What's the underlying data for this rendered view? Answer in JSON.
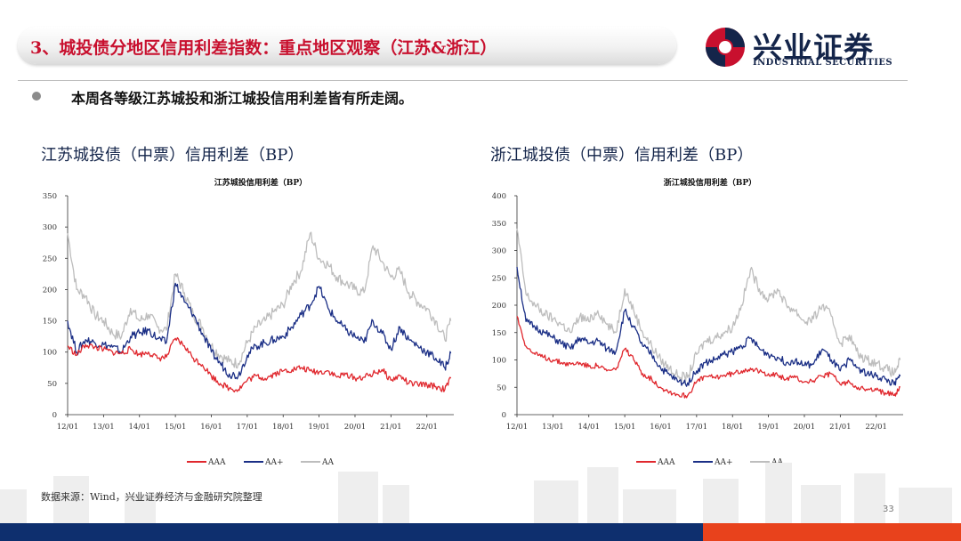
{
  "header": {
    "title": "3、城投债分地区信用利差指数：重点地区观察（江苏&浙江）",
    "logo_cn": "兴业证券",
    "logo_en": "INDUSTRIAL SECURITIES"
  },
  "bullet": "本周各等级江苏城投和浙江城投信用利差皆有所走阔。",
  "source": "数据来源：Wind，兴业证券经济与金融研究院整理",
  "page_number": "33",
  "colors": {
    "AAA": "#e0282e",
    "AA+": "#1b2f86",
    "AA": "#bdbdbd",
    "title_red": "#c8102e",
    "navy": "#14254a"
  },
  "charts": [
    {
      "heading": "江苏城投债（中票）信用利差（BP）",
      "inner_title": "江苏城投信用利差（BP）",
      "yticks": [
        "0",
        "50",
        "100",
        "150",
        "200",
        "250",
        "300",
        "350"
      ],
      "xticks": [
        "12/01",
        "13/01",
        "14/01",
        "15/01",
        "16/01",
        "17/01",
        "18/01",
        "19/01",
        "20/01",
        "21/01",
        "22/01"
      ],
      "legend": [
        "AAA",
        "AA+",
        "AA"
      ]
    },
    {
      "heading": "浙江城投债（中票）信用利差（BP）",
      "inner_title": "浙江城投信用利差（BP）",
      "yticks": [
        "0",
        "50",
        "100",
        "150",
        "200",
        "250",
        "300",
        "350",
        "400"
      ],
      "xticks": [
        "12/01",
        "13/01",
        "14/01",
        "15/01",
        "16/01",
        "17/01",
        "18/01",
        "19/01",
        "20/01",
        "21/01",
        "22/01"
      ],
      "legend": [
        "AAA",
        "AA+",
        "AA"
      ]
    }
  ],
  "chart_data": [
    {
      "type": "line",
      "title": "江苏城投信用利差（BP）",
      "ylim": [
        0,
        350
      ],
      "x": [
        "2012-01",
        "2012-04",
        "2012-07",
        "2012-10",
        "2013-01",
        "2013-04",
        "2013-07",
        "2013-10",
        "2014-01",
        "2014-04",
        "2014-07",
        "2014-10",
        "2015-01",
        "2015-04",
        "2015-07",
        "2015-10",
        "2016-01",
        "2016-04",
        "2016-07",
        "2016-10",
        "2017-01",
        "2017-04",
        "2017-07",
        "2017-10",
        "2018-01",
        "2018-04",
        "2018-07",
        "2018-10",
        "2019-01",
        "2019-04",
        "2019-07",
        "2019-10",
        "2020-01",
        "2020-04",
        "2020-07",
        "2020-10",
        "2021-01",
        "2021-04",
        "2021-07",
        "2021-10",
        "2022-01",
        "2022-04",
        "2022-07",
        "2022-09"
      ],
      "series": [
        {
          "name": "AAA",
          "values": [
            110,
            95,
            112,
            108,
            104,
            100,
            98,
            105,
            96,
            100,
            90,
            92,
            122,
            110,
            90,
            80,
            62,
            50,
            42,
            40,
            55,
            62,
            58,
            65,
            70,
            72,
            75,
            70,
            68,
            70,
            60,
            65,
            58,
            60,
            65,
            72,
            55,
            62,
            50,
            48,
            48,
            45,
            40,
            58
          ]
        },
        {
          "name": "AA+",
          "values": [
            150,
            100,
            120,
            115,
            112,
            108,
            100,
            125,
            130,
            135,
            122,
            115,
            210,
            180,
            160,
            130,
            100,
            82,
            65,
            62,
            95,
            110,
            115,
            120,
            125,
            140,
            160,
            175,
            205,
            170,
            150,
            135,
            125,
            115,
            150,
            130,
            105,
            140,
            120,
            110,
            100,
            90,
            75,
            98
          ]
        },
        {
          "name": "AA",
          "values": [
            290,
            200,
            190,
            160,
            150,
            130,
            125,
            170,
            150,
            160,
            140,
            135,
            225,
            195,
            160,
            140,
            110,
            95,
            85,
            82,
            115,
            140,
            150,
            165,
            175,
            210,
            230,
            290,
            250,
            240,
            220,
            210,
            200,
            195,
            270,
            245,
            220,
            230,
            195,
            180,
            170,
            150,
            120,
            150
          ]
        }
      ]
    },
    {
      "type": "line",
      "title": "浙江城投信用利差（BP）",
      "ylim": [
        0,
        400
      ],
      "x": [
        "2012-01",
        "2012-04",
        "2012-07",
        "2012-10",
        "2013-01",
        "2013-04",
        "2013-07",
        "2013-10",
        "2014-01",
        "2014-04",
        "2014-07",
        "2014-10",
        "2015-01",
        "2015-04",
        "2015-07",
        "2015-10",
        "2016-01",
        "2016-04",
        "2016-07",
        "2016-10",
        "2017-01",
        "2017-04",
        "2017-07",
        "2017-10",
        "2018-01",
        "2018-04",
        "2018-07",
        "2018-10",
        "2019-01",
        "2019-04",
        "2019-07",
        "2019-10",
        "2020-01",
        "2020-04",
        "2020-07",
        "2020-10",
        "2021-01",
        "2021-04",
        "2021-07",
        "2021-10",
        "2022-01",
        "2022-04",
        "2022-07",
        "2022-09"
      ],
      "series": [
        {
          "name": "AAA",
          "values": [
            180,
            125,
            110,
            105,
            100,
            95,
            92,
            95,
            88,
            90,
            80,
            82,
            120,
            100,
            75,
            65,
            50,
            42,
            36,
            35,
            60,
            70,
            68,
            72,
            75,
            80,
            85,
            78,
            75,
            72,
            65,
            68,
            60,
            62,
            70,
            75,
            55,
            60,
            50,
            45,
            45,
            40,
            35,
            50
          ]
        },
        {
          "name": "AA+",
          "values": [
            270,
            170,
            160,
            150,
            140,
            130,
            120,
            140,
            130,
            135,
            120,
            115,
            190,
            160,
            125,
            110,
            85,
            72,
            60,
            58,
            80,
            95,
            100,
            110,
            115,
            125,
            140,
            120,
            110,
            105,
            95,
            100,
            90,
            92,
            120,
            100,
            80,
            100,
            85,
            75,
            70,
            65,
            55,
            70
          ]
        },
        {
          "name": "AA",
          "values": [
            340,
            220,
            200,
            185,
            175,
            165,
            150,
            180,
            170,
            190,
            165,
            150,
            230,
            190,
            150,
            125,
            100,
            85,
            70,
            68,
            110,
            135,
            140,
            150,
            160,
            200,
            265,
            230,
            210,
            230,
            200,
            190,
            170,
            175,
            200,
            180,
            130,
            145,
            110,
            100,
            95,
            85,
            75,
            100
          ]
        }
      ]
    }
  ]
}
